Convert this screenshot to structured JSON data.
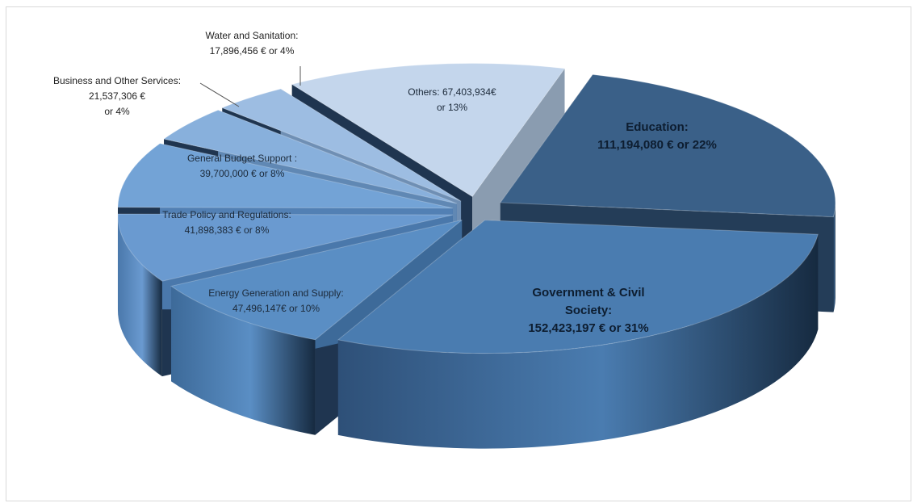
{
  "chart_data": {
    "type": "pie",
    "title": "",
    "legend": "none",
    "slices": [
      {
        "category": "Education:",
        "amount": "111,194,080 € or  22%",
        "value": 111194080,
        "percent": 22,
        "color": "#3a6088",
        "side": "#243d58",
        "label_lines": [
          "Education:",
          "111,194,080 € or  22%"
        ]
      },
      {
        "category": "Government & Civil Society:",
        "amount": "152,423,197 € or 31%",
        "value": 152423197,
        "percent": 31,
        "color": "#4a7cb0",
        "side": "#2e5078",
        "label_lines": [
          "Government & Civil",
          "Society:",
          "152,423,197 € or 31%"
        ]
      },
      {
        "category": "Energy Generation and Supply:",
        "amount": "47,496,147€ or 10%",
        "value": 47496147,
        "percent": 10,
        "color": "#5a8ec4",
        "side": "#3d6a99",
        "label_lines": [
          "Energy Generation and Supply:",
          "47,496,147€ or 10%"
        ]
      },
      {
        "category": "Trade Policy and Regulations:",
        "amount": "41,898,383 € or 8%",
        "value": 41898383,
        "percent": 8,
        "color": "#6a9ad0",
        "side": "#4a78ab",
        "label_lines": [
          "Trade Policy and Regulations:",
          "41,898,383 € or 8%"
        ]
      },
      {
        "category": "General Budget Support :",
        "amount": "39,700,000 € or 8%",
        "value": 39700000,
        "percent": 8,
        "color": "#73a3d6",
        "side": "#5280b4",
        "label_lines": [
          "General Budget Support :",
          "39,700,000 € or 8%"
        ]
      },
      {
        "category": "Business and Other Services:",
        "amount": "21,537,306 € or 4%",
        "value": 21537306,
        "percent": 4,
        "color": "#88b0dc",
        "side": "#6088b4",
        "label_lines": [
          "Business and Other Services:",
          "21,537,306 €",
          "or 4%"
        ]
      },
      {
        "category": "Water and Sanitation:",
        "amount": "17,896,456 € or 4%",
        "value": 17896456,
        "percent": 4,
        "color": "#9dbde2",
        "side": "#6f8fb4",
        "label_lines": [
          "Water and Sanitation:",
          "17,896,456 € or 4%"
        ]
      },
      {
        "category": "Others:",
        "amount": "67,403,934€ or 13%",
        "value": 67403934,
        "percent": 13,
        "color": "#c4d6ec",
        "side": "#8a9cb0",
        "label_lines": [
          "Others:  67,403,934€",
          "or 13%"
        ]
      }
    ]
  }
}
